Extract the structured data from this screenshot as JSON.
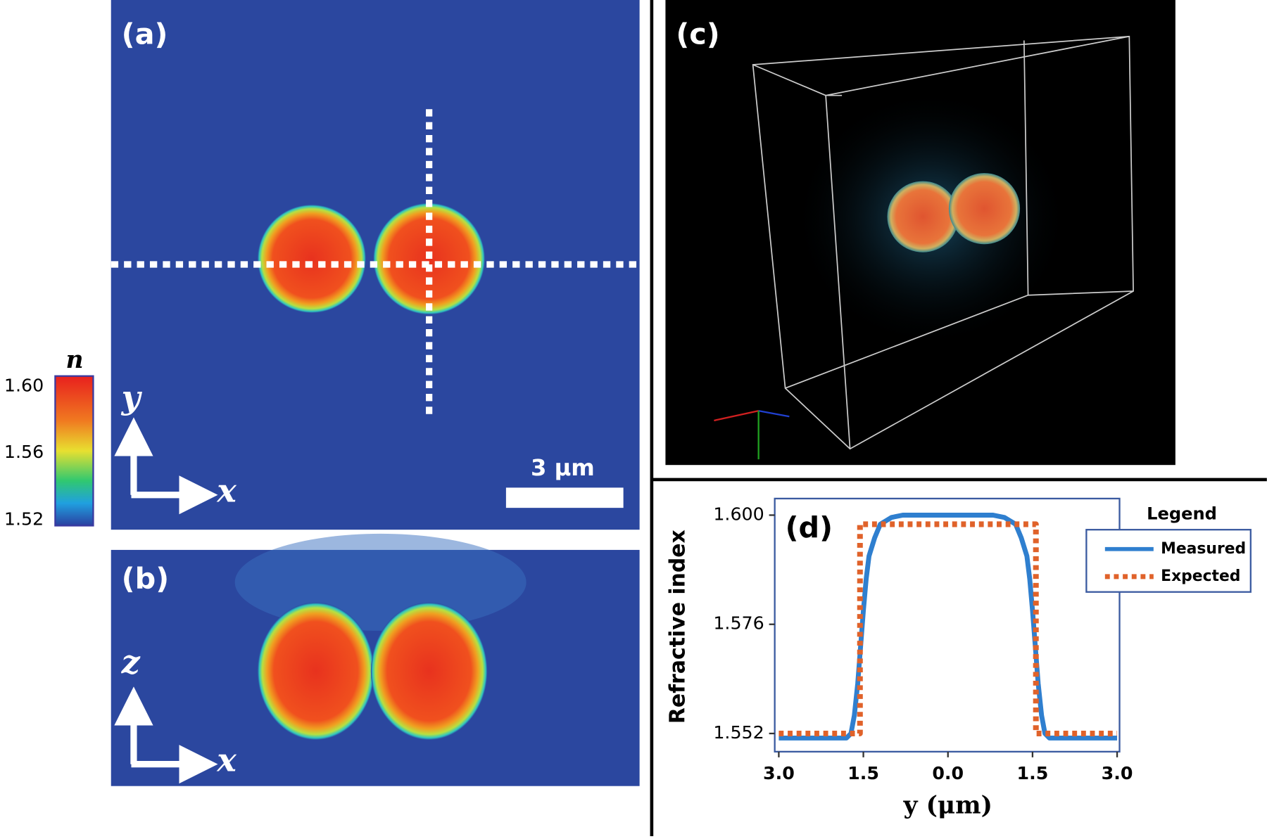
{
  "panels": {
    "a": {
      "label": "(a)",
      "scale_bar": "3 μm",
      "axis_vertical": "y",
      "axis_horizontal": "x"
    },
    "b": {
      "label": "(b)",
      "axis_vertical": "z",
      "axis_horizontal": "x"
    },
    "c": {
      "label": "(c)"
    }
  },
  "colorbar": {
    "title": "n",
    "ticks": [
      "1.60",
      "1.56",
      "1.52"
    ]
  },
  "chart_data": {
    "type": "line",
    "panel_label": "(d)",
    "ylabel": "Refractive index",
    "xlabel": "y (μm)",
    "legend_title": "Legend",
    "legend": "upper right outside",
    "xlim": [
      -3,
      3
    ],
    "ylim": [
      1.548,
      1.604
    ],
    "xticks": [
      {
        "value": -3,
        "label": "3.0"
      },
      {
        "value": -1.5,
        "label": "1.5"
      },
      {
        "value": 0,
        "label": "0.0"
      },
      {
        "value": 1.5,
        "label": "1.5"
      },
      {
        "value": 3,
        "label": "3.0"
      }
    ],
    "yticks": [
      1.552,
      1.576,
      {
        "value": 1.6,
        "label": "1.600"
      }
    ],
    "series": [
      {
        "name": "Measured",
        "color": "#2f7fcf",
        "style": "solid",
        "x": [
          -3,
          -1.8,
          -1.72,
          -1.66,
          -1.6,
          -1.55,
          -1.5,
          -1.45,
          -1.4,
          -1.3,
          -1.2,
          -1.0,
          -0.8,
          0.8,
          1.0,
          1.2,
          1.3,
          1.4,
          1.45,
          1.5,
          1.55,
          1.6,
          1.66,
          1.72,
          1.8,
          3
        ],
        "values": [
          1.551,
          1.551,
          1.552,
          1.556,
          1.563,
          1.571,
          1.579,
          1.586,
          1.591,
          1.595,
          1.598,
          1.5995,
          1.6,
          1.6,
          1.5995,
          1.598,
          1.595,
          1.591,
          1.586,
          1.579,
          1.571,
          1.563,
          1.556,
          1.552,
          1.551,
          1.551
        ]
      },
      {
        "name": "Expected",
        "color": "#e0622a",
        "style": "dotted",
        "x": [
          -3,
          -1.56,
          -1.56,
          1.56,
          1.56,
          3
        ],
        "values": [
          1.552,
          1.552,
          1.598,
          1.598,
          1.552,
          1.552
        ]
      }
    ]
  }
}
